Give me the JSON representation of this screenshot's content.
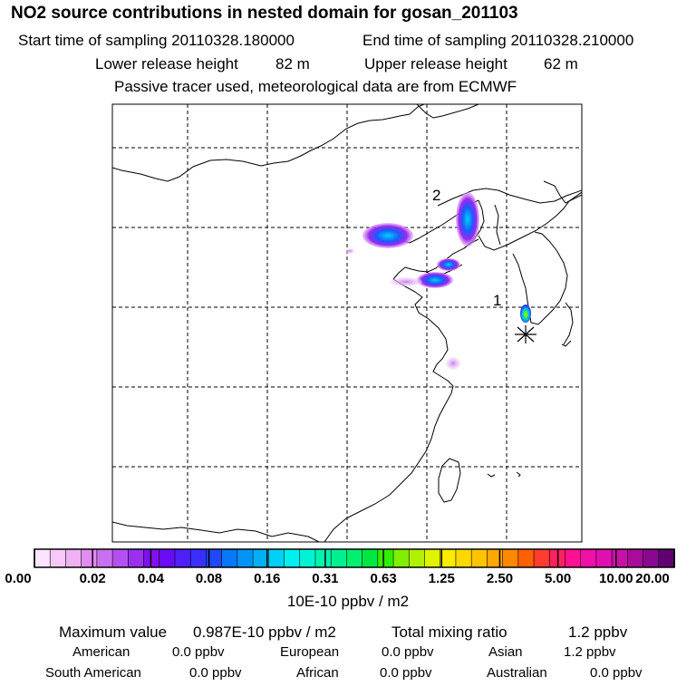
{
  "header": {
    "title": "NO2 source contributions in nested domain for gosan_201103",
    "start_label": "Start time of sampling 20110328.180000",
    "end_label": "End time of sampling 20110328.210000",
    "lower_label": "Lower release height",
    "lower_value": "82 m",
    "upper_label": "Upper release height",
    "upper_value": "62 m",
    "tracer_note": "Passive tracer used, meteorological data are from ECMWF"
  },
  "map": {
    "receptor_marker": "asterisk-icon",
    "label_1": "1",
    "label_2": "2"
  },
  "colorbar": {
    "colors": [
      "#fce4fc",
      "#f8c8f8",
      "#f0b0f4",
      "#e08cf0",
      "#c870f0",
      "#b450f0",
      "#9a30f0",
      "#8010ee",
      "#6a0cf4",
      "#5020fa",
      "#3a30fc",
      "#2048fc",
      "#0878f8",
      "#0094f8",
      "#00b0f6",
      "#00d0f4",
      "#00f0f0",
      "#00f4d4",
      "#00f4b0",
      "#00f090",
      "#00f070",
      "#00e840",
      "#30f000",
      "#80f000",
      "#b0f000",
      "#e0f400",
      "#f8ec00",
      "#ffd800",
      "#ffc400",
      "#ffa800",
      "#ff8800",
      "#ff6000",
      "#ff3c30",
      "#ff2060",
      "#ff1090",
      "#f010a8",
      "#e010b0",
      "#c810a8",
      "#a80c98",
      "#880890",
      "#600070"
    ],
    "ticks": [
      "0.00",
      "0.02",
      "0.04",
      "0.08",
      "0.16",
      "0.31",
      "0.63",
      "1.25",
      "2.50",
      "5.00",
      "10.00",
      "20.00"
    ],
    "units": "10E-10 ppbv / m2"
  },
  "summary": {
    "max_label": "Maximum value",
    "max_value": "0.987E-10 ppbv / m2",
    "total_label": "Total mixing ratio",
    "total_value": "1.2 ppbv",
    "regions": [
      {
        "name": "American",
        "value": "0.0 ppbv"
      },
      {
        "name": "European",
        "value": "0.0 ppbv"
      },
      {
        "name": "Asian",
        "value": "1.2 ppbv"
      },
      {
        "name": "South American",
        "value": "0.0 ppbv"
      },
      {
        "name": "African",
        "value": "0.0 ppbv"
      },
      {
        "name": "Australian",
        "value": "0.0 ppbv"
      }
    ]
  }
}
